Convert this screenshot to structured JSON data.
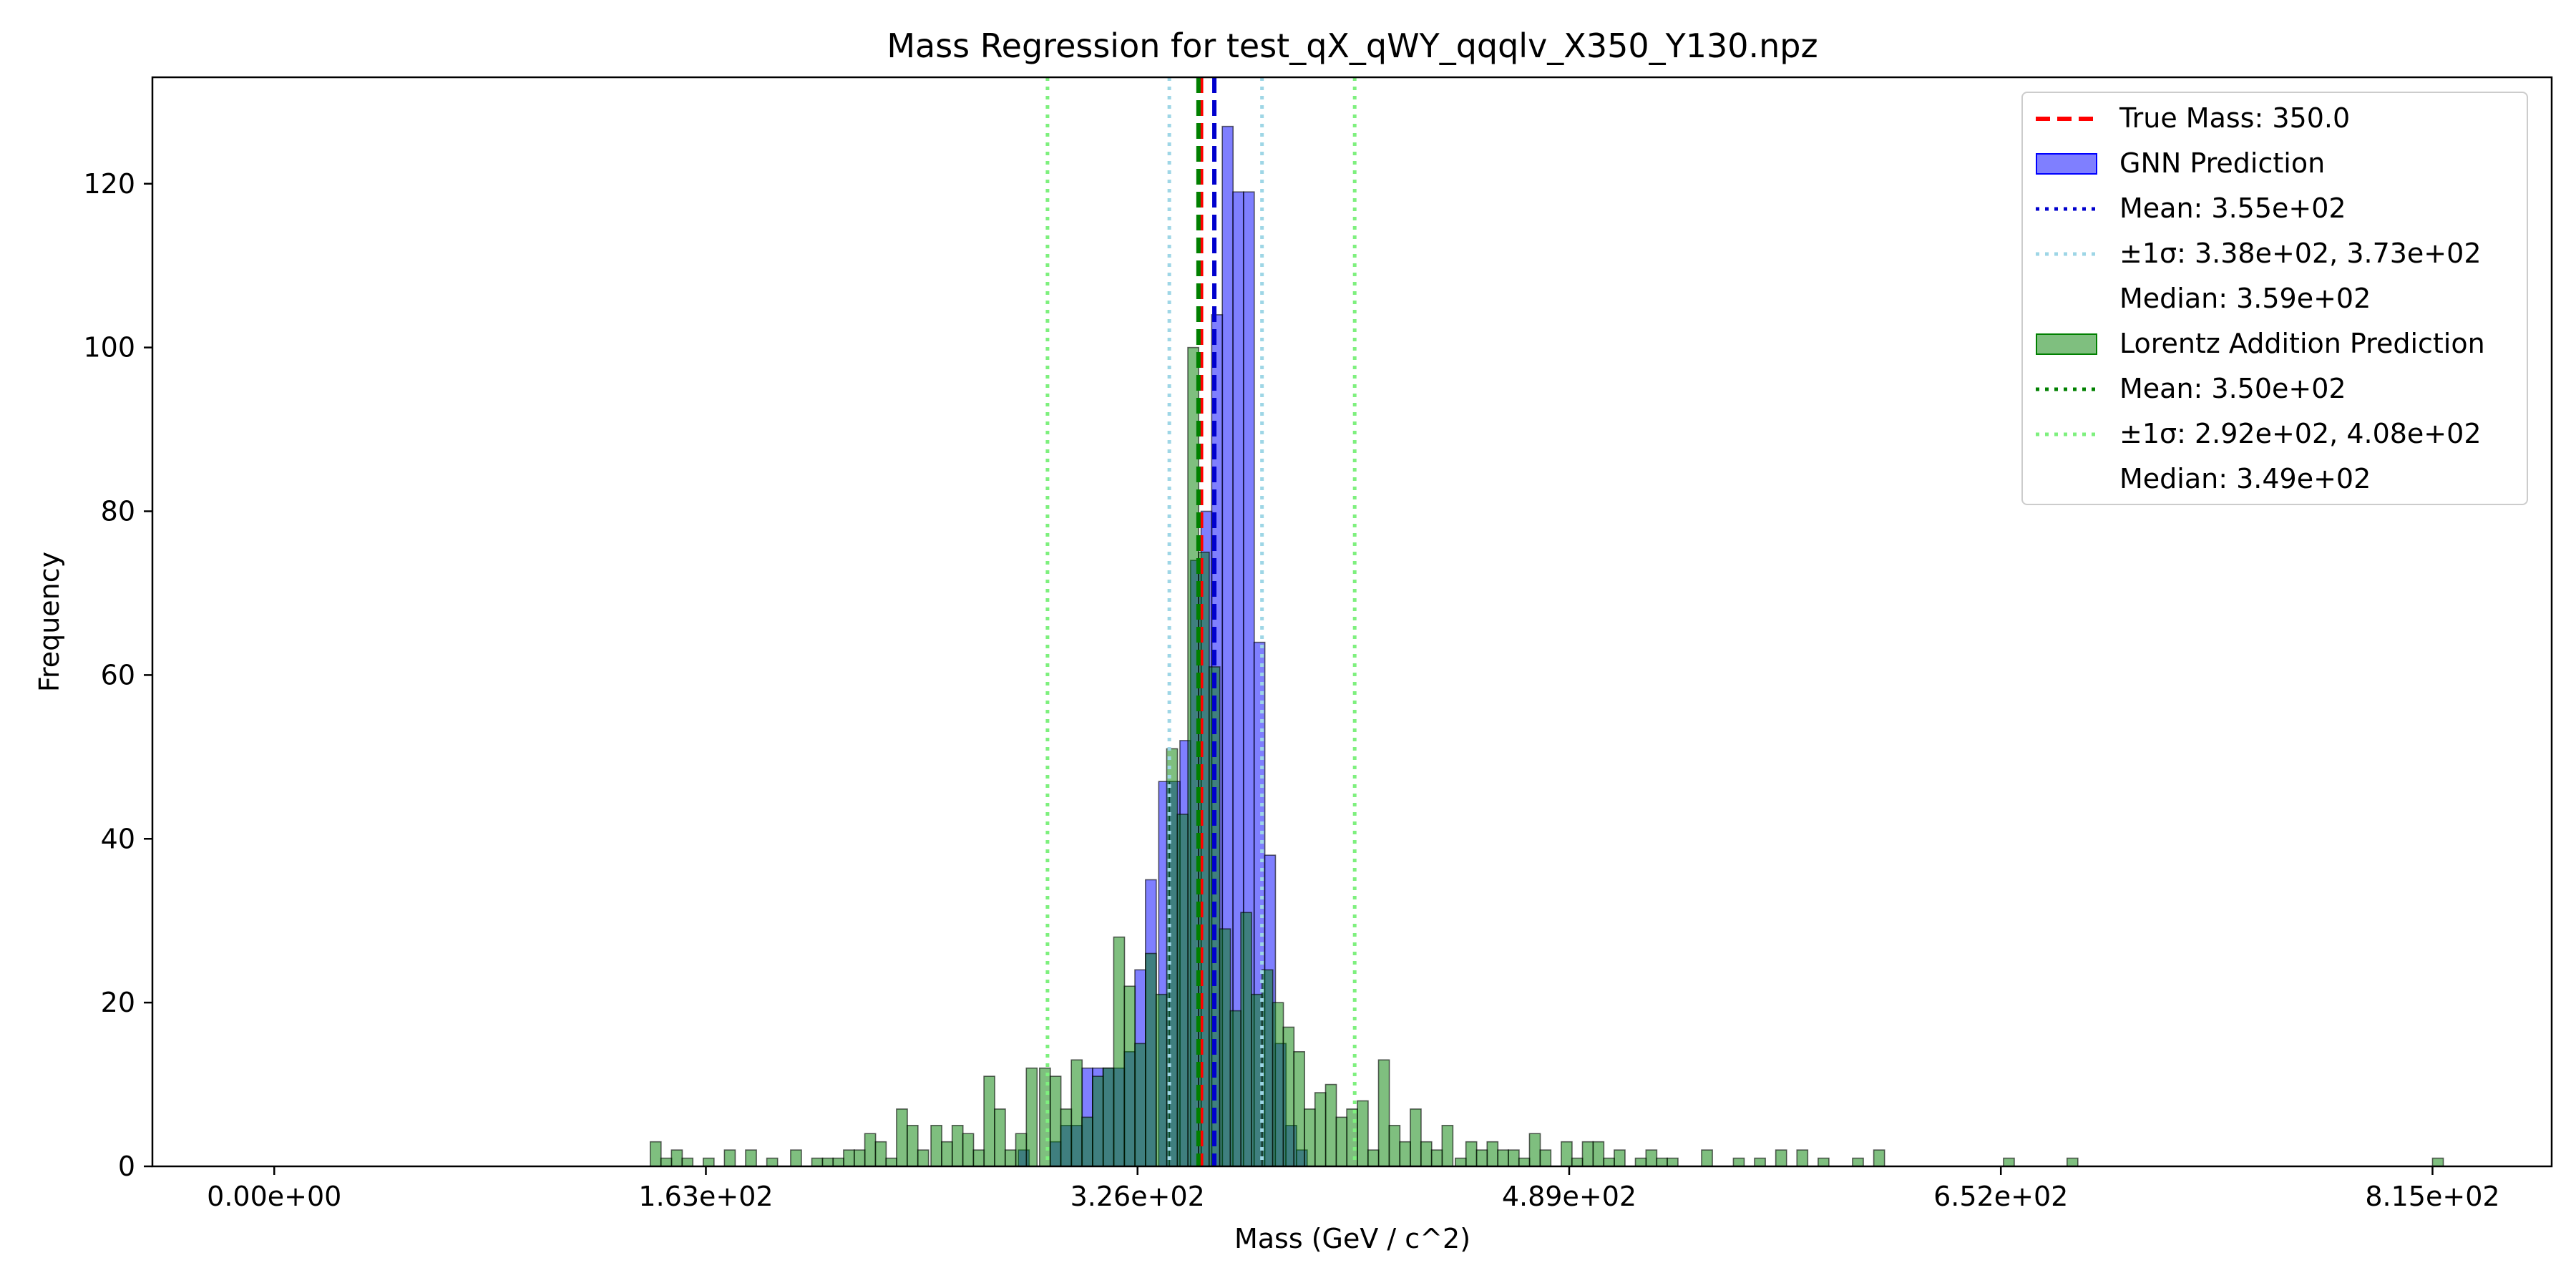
{
  "chart_data": {
    "type": "bar",
    "title": "Mass Regression for test_qX_qWY_qqqlv_X350_Y130.npz",
    "xlabel": "Mass (GeV / c^2)",
    "ylabel": "Frequency",
    "xlim": [
      -46,
      860
    ],
    "ylim": [
      0,
      133
    ],
    "xticks": [
      0,
      163,
      326,
      489,
      652,
      815
    ],
    "xtick_labels": [
      "0.00e+00",
      "1.63e+02",
      "3.26e+02",
      "4.89e+02",
      "6.52e+02",
      "8.15e+02"
    ],
    "yticks": [
      0,
      20,
      40,
      60,
      80,
      100,
      120
    ],
    "ytick_labels": [
      "0",
      "20",
      "40",
      "60",
      "80",
      "100",
      "120"
    ],
    "bin_width": 4.075,
    "grid": false,
    "legend_position": "upper right",
    "series": [
      {
        "name": "GNN Prediction",
        "color": "#0000ff",
        "bins": [
          {
            "x": 281,
            "y": 2
          },
          {
            "x": 293,
            "y": 3
          },
          {
            "x": 297,
            "y": 5
          },
          {
            "x": 301,
            "y": 5
          },
          {
            "x": 305,
            "y": 12
          },
          {
            "x": 309,
            "y": 12
          },
          {
            "x": 313,
            "y": 12
          },
          {
            "x": 317,
            "y": 12
          },
          {
            "x": 321,
            "y": 14
          },
          {
            "x": 325,
            "y": 24
          },
          {
            "x": 329,
            "y": 35
          },
          {
            "x": 334,
            "y": 47
          },
          {
            "x": 338,
            "y": 47
          },
          {
            "x": 342,
            "y": 52
          },
          {
            "x": 346,
            "y": 74
          },
          {
            "x": 350,
            "y": 80
          },
          {
            "x": 354,
            "y": 104
          },
          {
            "x": 358,
            "y": 127
          },
          {
            "x": 362,
            "y": 119
          },
          {
            "x": 366,
            "y": 119
          },
          {
            "x": 370,
            "y": 64
          },
          {
            "x": 374,
            "y": 38
          },
          {
            "x": 378,
            "y": 15
          },
          {
            "x": 382,
            "y": 5
          },
          {
            "x": 386,
            "y": 2
          }
        ]
      },
      {
        "name": "Lorentz Addition Prediction",
        "color": "#008000",
        "bins": [
          {
            "x": 142,
            "y": 3
          },
          {
            "x": 146,
            "y": 1
          },
          {
            "x": 150,
            "y": 2
          },
          {
            "x": 154,
            "y": 1
          },
          {
            "x": 162,
            "y": 1
          },
          {
            "x": 170,
            "y": 2
          },
          {
            "x": 178,
            "y": 2
          },
          {
            "x": 186,
            "y": 1
          },
          {
            "x": 195,
            "y": 2
          },
          {
            "x": 203,
            "y": 1
          },
          {
            "x": 207,
            "y": 1
          },
          {
            "x": 211,
            "y": 1
          },
          {
            "x": 215,
            "y": 2
          },
          {
            "x": 219,
            "y": 2
          },
          {
            "x": 223,
            "y": 4
          },
          {
            "x": 227,
            "y": 3
          },
          {
            "x": 231,
            "y": 1
          },
          {
            "x": 235,
            "y": 7
          },
          {
            "x": 239,
            "y": 5
          },
          {
            "x": 243,
            "y": 2
          },
          {
            "x": 248,
            "y": 5
          },
          {
            "x": 252,
            "y": 3
          },
          {
            "x": 256,
            "y": 5
          },
          {
            "x": 260,
            "y": 4
          },
          {
            "x": 264,
            "y": 2
          },
          {
            "x": 268,
            "y": 11
          },
          {
            "x": 272,
            "y": 7
          },
          {
            "x": 276,
            "y": 2
          },
          {
            "x": 280,
            "y": 4
          },
          {
            "x": 284,
            "y": 12
          },
          {
            "x": 289,
            "y": 12
          },
          {
            "x": 293,
            "y": 11
          },
          {
            "x": 297,
            "y": 7
          },
          {
            "x": 301,
            "y": 13
          },
          {
            "x": 305,
            "y": 6
          },
          {
            "x": 309,
            "y": 11
          },
          {
            "x": 313,
            "y": 12
          },
          {
            "x": 317,
            "y": 28
          },
          {
            "x": 321,
            "y": 22
          },
          {
            "x": 325,
            "y": 15
          },
          {
            "x": 329,
            "y": 26
          },
          {
            "x": 333,
            "y": 21
          },
          {
            "x": 337,
            "y": 51
          },
          {
            "x": 341,
            "y": 43
          },
          {
            "x": 345,
            "y": 100
          },
          {
            "x": 349,
            "y": 75
          },
          {
            "x": 353,
            "y": 61
          },
          {
            "x": 357,
            "y": 29
          },
          {
            "x": 361,
            "y": 19
          },
          {
            "x": 365,
            "y": 31
          },
          {
            "x": 369,
            "y": 21
          },
          {
            "x": 373,
            "y": 24
          },
          {
            "x": 377,
            "y": 20
          },
          {
            "x": 381,
            "y": 17
          },
          {
            "x": 385,
            "y": 14
          },
          {
            "x": 389,
            "y": 7
          },
          {
            "x": 393,
            "y": 9
          },
          {
            "x": 397,
            "y": 10
          },
          {
            "x": 401,
            "y": 6
          },
          {
            "x": 405,
            "y": 7
          },
          {
            "x": 409,
            "y": 8
          },
          {
            "x": 413,
            "y": 2
          },
          {
            "x": 417,
            "y": 13
          },
          {
            "x": 421,
            "y": 5
          },
          {
            "x": 425,
            "y": 3
          },
          {
            "x": 429,
            "y": 7
          },
          {
            "x": 433,
            "y": 3
          },
          {
            "x": 437,
            "y": 2
          },
          {
            "x": 441,
            "y": 5
          },
          {
            "x": 446,
            "y": 1
          },
          {
            "x": 450,
            "y": 3
          },
          {
            "x": 454,
            "y": 2
          },
          {
            "x": 458,
            "y": 3
          },
          {
            "x": 462,
            "y": 2
          },
          {
            "x": 466,
            "y": 2
          },
          {
            "x": 470,
            "y": 1
          },
          {
            "x": 474,
            "y": 4
          },
          {
            "x": 478,
            "y": 2
          },
          {
            "x": 486,
            "y": 3
          },
          {
            "x": 490,
            "y": 1
          },
          {
            "x": 494,
            "y": 3
          },
          {
            "x": 498,
            "y": 3
          },
          {
            "x": 502,
            "y": 1
          },
          {
            "x": 506,
            "y": 2
          },
          {
            "x": 514,
            "y": 1
          },
          {
            "x": 518,
            "y": 2
          },
          {
            "x": 522,
            "y": 1
          },
          {
            "x": 526,
            "y": 1
          },
          {
            "x": 539,
            "y": 2
          },
          {
            "x": 551,
            "y": 1
          },
          {
            "x": 559,
            "y": 1
          },
          {
            "x": 567,
            "y": 2
          },
          {
            "x": 575,
            "y": 2
          },
          {
            "x": 583,
            "y": 1
          },
          {
            "x": 596,
            "y": 1
          },
          {
            "x": 604,
            "y": 2
          },
          {
            "x": 653,
            "y": 1
          },
          {
            "x": 677,
            "y": 1
          },
          {
            "x": 815,
            "y": 1
          }
        ]
      }
    ],
    "vlines": [
      {
        "x": 350.0,
        "color": "#ff0000",
        "style": "dashed"
      },
      {
        "x": 355,
        "color": "#0000cd",
        "style": "dashed"
      },
      {
        "x": 338,
        "color": "#9ed6e6",
        "style": "dotted"
      },
      {
        "x": 373,
        "color": "#9ed6e6",
        "style": "dotted"
      },
      {
        "x": 349,
        "color": "#008000",
        "style": "dashed"
      },
      {
        "x": 292,
        "color": "#7ef07e",
        "style": "dotted"
      },
      {
        "x": 408,
        "color": "#7ef07e",
        "style": "dotted"
      }
    ],
    "legend": [
      {
        "label": "True Mass: 350.0",
        "handle": "line",
        "color": "#ff0000",
        "style": "dashed"
      },
      {
        "label": "GNN Prediction",
        "handle": "patch",
        "color": "#0000ff"
      },
      {
        "label": "Mean: 3.55e+02",
        "handle": "line",
        "color": "#0000cd",
        "style": "dotted"
      },
      {
        "label": "±1σ: 3.38e+02, 3.73e+02",
        "handle": "line",
        "color": "#9ed6e6",
        "style": "dotted"
      },
      {
        "label": "Median: 3.59e+02",
        "handle": "none",
        "color": "#ffffff"
      },
      {
        "label": "Lorentz Addition Prediction",
        "handle": "patch",
        "color": "#008000"
      },
      {
        "label": "Mean: 3.50e+02",
        "handle": "line",
        "color": "#008000",
        "style": "dotted"
      },
      {
        "label": "±1σ: 2.92e+02, 4.08e+02",
        "handle": "line",
        "color": "#7ef07e",
        "style": "dotted"
      },
      {
        "label": "Median: 3.49e+02",
        "handle": "none",
        "color": "#ffffff"
      }
    ]
  }
}
